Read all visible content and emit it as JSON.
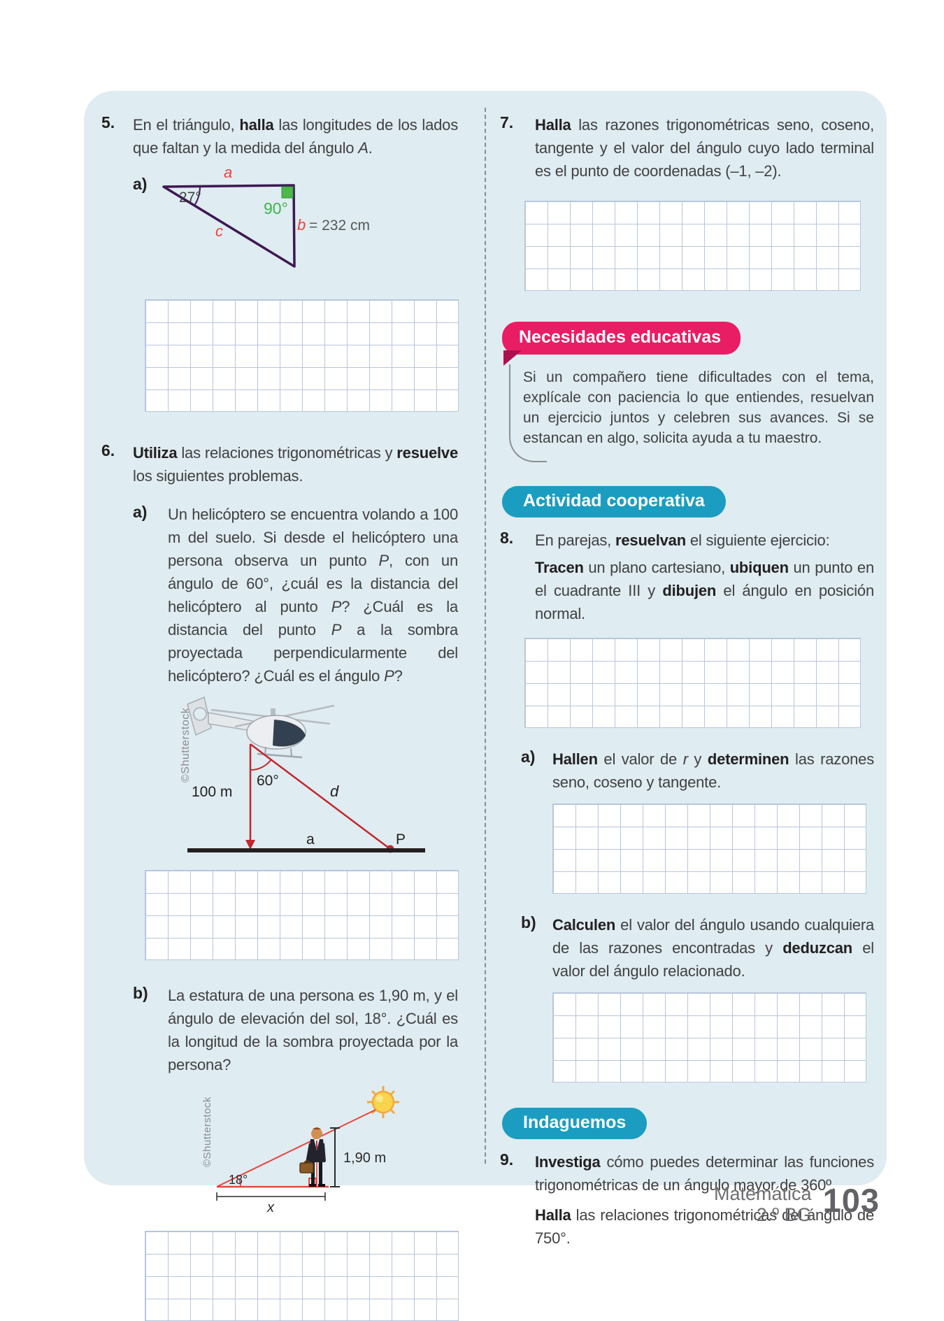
{
  "colors": {
    "panel_bg": "#dfecf1",
    "accent_pink": "#e91d63",
    "accent_teal": "#1b9dc2",
    "grid_line": "#b7c6de",
    "triangle_purple": "#3e1853",
    "diagram_red": "#c1272d",
    "label_red": "#e8433c",
    "label_green": "#3cb44a",
    "body_text": "#414042"
  },
  "left": {
    "ex5": {
      "num": "5.",
      "body": [
        [
          "En el triángulo, "
        ],
        [
          "halla",
          "b"
        ],
        [
          " las longitudes de los lados que faltan y la medida del ángulo "
        ],
        [
          "A",
          "i"
        ],
        [
          "."
        ]
      ],
      "item_label": "a)",
      "triangle": {
        "angle_left": "27°",
        "angle_right": "90°",
        "side_top": "a",
        "side_right_name": "b",
        "side_right_value": "= 232 cm",
        "side_hyp": "c"
      }
    },
    "ex6": {
      "num": "6.",
      "body": [
        [
          "Utiliza",
          "b"
        ],
        [
          " las relaciones trigonométricas y "
        ],
        [
          "resuelve",
          "b"
        ],
        [
          " los siguientes problemas."
        ]
      ],
      "a_label": "a)",
      "a_body": [
        [
          "Un helicóptero se encuentra volando a 100 m del suelo. Si desde el helicóptero una persona observa un punto "
        ],
        [
          "P",
          "i"
        ],
        [
          ", con un ángulo de 60°, ¿cuál es la distancia del helicóptero al punto "
        ],
        [
          "P",
          "i"
        ],
        [
          "? ¿Cuál es la distancia del punto "
        ],
        [
          "P",
          "i"
        ],
        [
          " a la sombra proyectada perpendicularmente del helicóptero? ¿Cuál es el ángulo "
        ],
        [
          "P",
          "i"
        ],
        [
          "?"
        ]
      ],
      "heli": {
        "credit": "©Shutterstock",
        "height": "100 m",
        "angle": "60°",
        "hyp": "d",
        "base": "a",
        "point": "P"
      },
      "b_label": "b)",
      "b_body": [
        [
          "La estatura de una persona es 1,90 m, y el ángulo de elevación del sol, 18°. ¿Cuál es la longitud de la sombra proyectada por la persona?"
        ]
      ],
      "person": {
        "credit": "©Shutterstock",
        "height": "1,90 m",
        "angle": "18°",
        "base": "x"
      }
    }
  },
  "right": {
    "ex7": {
      "num": "7.",
      "body": [
        [
          "Halla",
          "b"
        ],
        [
          " las razones trigonométricas seno, coseno, tangente y el valor del ángulo cuyo lado terminal es el punto de coordenadas (–1, –2)."
        ]
      ]
    },
    "note": {
      "title": "Necesidades educativas",
      "body": [
        [
          "Si un compañero tiene dificultades con el tema, explícale con paciencia lo que entiendes, resuelvan un ejercicio juntos y celebren sus avances. Si se estancan en algo, solicita ayuda a tu maestro."
        ]
      ]
    },
    "coop": {
      "title": "Actividad cooperativa"
    },
    "ex8": {
      "num": "8.",
      "body": [
        [
          "En parejas, "
        ],
        [
          "resuelvan",
          "b"
        ],
        [
          " el siguiente ejercicio:"
        ]
      ],
      "p2": [
        [
          "Tracen",
          "b"
        ],
        [
          " un plano cartesiano, "
        ],
        [
          "ubiquen",
          "b"
        ],
        [
          " un punto en el cuadrante III y "
        ],
        [
          "dibujen",
          "b"
        ],
        [
          " el ángulo en posición normal."
        ]
      ],
      "a_label": "a)",
      "a_body": [
        [
          "Hallen",
          "b"
        ],
        [
          " el valor de "
        ],
        [
          "r",
          "i"
        ],
        [
          " y "
        ],
        [
          "determinen",
          "b"
        ],
        [
          " las razones seno, coseno y tangente."
        ]
      ],
      "b_label": "b)",
      "b_body": [
        [
          "Calculen",
          "b"
        ],
        [
          " el valor del ángulo usando cualquiera de las razones encontradas y "
        ],
        [
          "deduzcan",
          "b"
        ],
        [
          " el valor del ángulo relacionado."
        ]
      ]
    },
    "inda": {
      "title": "Indaguemos"
    },
    "ex9": {
      "num": "9.",
      "body": [
        [
          "Investiga",
          "b"
        ],
        [
          " cómo puedes determinar las funciones trigonométricas de un ángulo mayor de 360º."
        ]
      ],
      "p2": [
        [
          "Halla",
          "b"
        ],
        [
          " las relaciones trigonométricas del ángulo de 750°."
        ]
      ]
    }
  },
  "footer": {
    "subject": "Matemática",
    "grade": "2.º BG",
    "page_number": "103"
  }
}
